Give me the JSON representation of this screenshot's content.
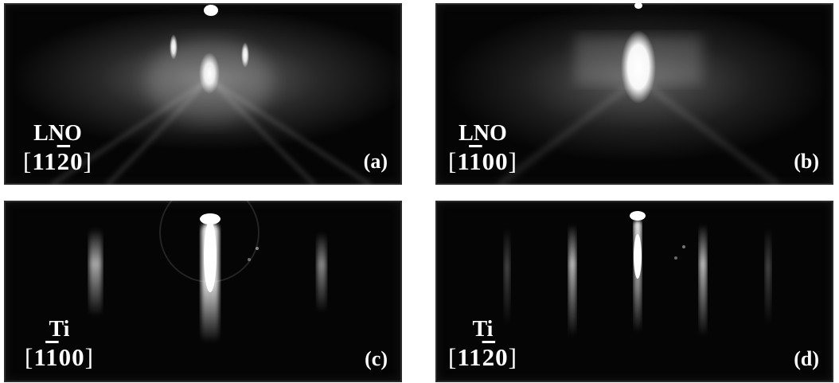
{
  "panels": [
    {
      "id": "a",
      "material": "LNO",
      "direction_pre": "11",
      "direction_bar": "2",
      "direction_post": "0",
      "letter": "(a)"
    },
    {
      "id": "b",
      "material": "LNO",
      "direction_pre": "1",
      "direction_bar": "1",
      "direction_post": "00",
      "letter": "(b)"
    },
    {
      "id": "c",
      "material": "Ti",
      "direction_pre": "1",
      "direction_bar": "1",
      "direction_post": "00",
      "letter": "(c)"
    },
    {
      "id": "d",
      "material": "Ti",
      "direction_pre": "11",
      "direction_bar": "2",
      "direction_post": "0",
      "letter": "(d)"
    }
  ],
  "brackets": {
    "open": "[",
    "close": "]"
  },
  "colors": {
    "background": "#ffffff",
    "panel_background": "#050505",
    "pattern": "#ffffff"
  }
}
